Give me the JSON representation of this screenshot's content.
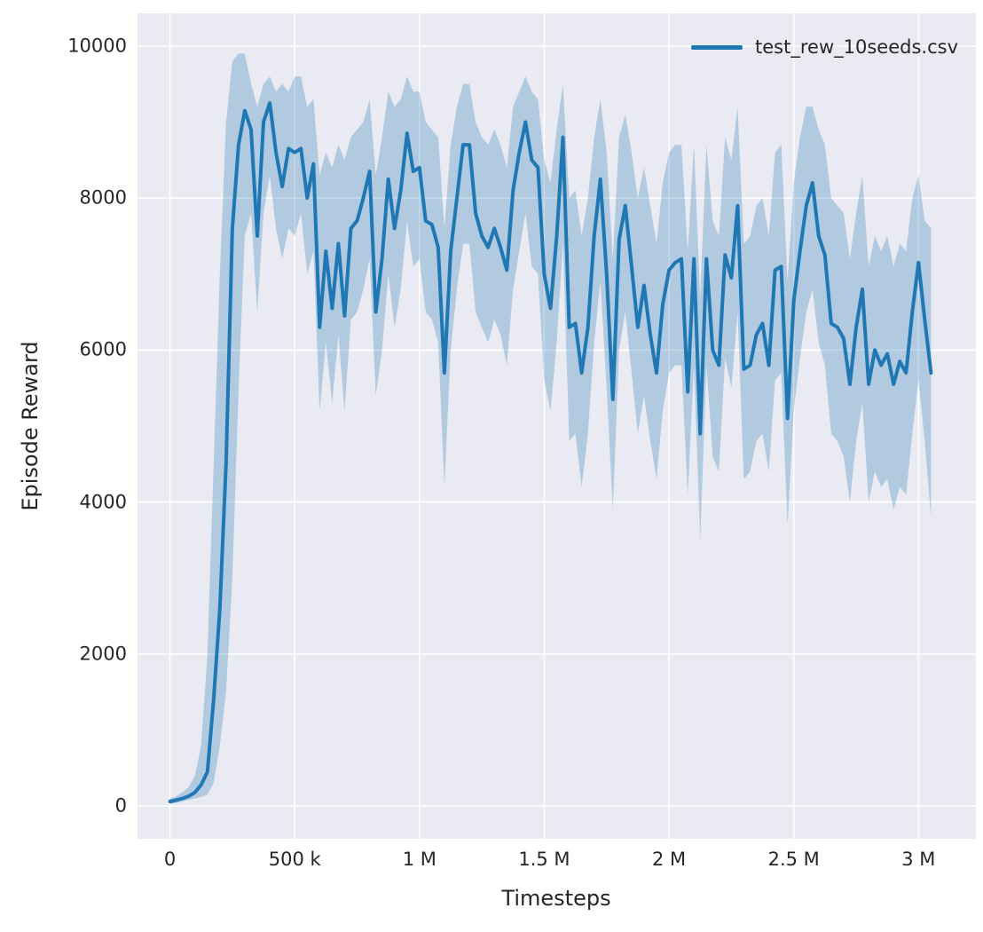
{
  "figure": {
    "background": "#ffffff",
    "plot_background": "#eaeaf2",
    "grid_color": "#ffffff",
    "text_color": "#262626"
  },
  "chart_data": {
    "type": "line",
    "title": "",
    "xlabel": "Timesteps",
    "ylabel": "Episode Reward",
    "x_unit": "thousands of timesteps",
    "xlim": [
      -130,
      3230
    ],
    "ylim": [
      -430,
      10430
    ],
    "grid": true,
    "legend_position": "upper right",
    "x_ticks": [
      {
        "value": 0,
        "label": "0"
      },
      {
        "value": 500,
        "label": "500 k"
      },
      {
        "value": 1000,
        "label": "1 M"
      },
      {
        "value": 1500,
        "label": "1.5 M"
      },
      {
        "value": 2000,
        "label": "2 M"
      },
      {
        "value": 2500,
        "label": "2.5 M"
      },
      {
        "value": 3000,
        "label": "3 M"
      }
    ],
    "y_ticks": [
      {
        "value": 0,
        "label": "0"
      },
      {
        "value": 2000,
        "label": "2000"
      },
      {
        "value": 4000,
        "label": "4000"
      },
      {
        "value": 6000,
        "label": "6000"
      },
      {
        "value": 8000,
        "label": "8000"
      },
      {
        "value": 10000,
        "label": "10000"
      }
    ],
    "series": [
      {
        "name": "test_rew_10seeds.csv",
        "color": "#1f77b4",
        "band_color": "#1f77b4",
        "band_opacity": 0.28,
        "line_width": 4,
        "x": [
          0,
          25,
          50,
          75,
          100,
          125,
          150,
          175,
          200,
          225,
          250,
          275,
          300,
          325,
          350,
          375,
          400,
          425,
          450,
          475,
          500,
          525,
          550,
          575,
          600,
          625,
          650,
          675,
          700,
          725,
          750,
          775,
          800,
          825,
          850,
          875,
          900,
          925,
          950,
          975,
          1000,
          1025,
          1050,
          1075,
          1100,
          1125,
          1150,
          1175,
          1200,
          1225,
          1250,
          1275,
          1300,
          1325,
          1350,
          1375,
          1400,
          1425,
          1450,
          1475,
          1500,
          1525,
          1550,
          1575,
          1600,
          1625,
          1650,
          1675,
          1700,
          1725,
          1750,
          1775,
          1800,
          1825,
          1850,
          1875,
          1900,
          1925,
          1950,
          1975,
          2000,
          2025,
          2050,
          2075,
          2100,
          2125,
          2150,
          2175,
          2200,
          2225,
          2250,
          2275,
          2300,
          2325,
          2350,
          2375,
          2400,
          2425,
          2450,
          2475,
          2500,
          2525,
          2550,
          2575,
          2600,
          2625,
          2650,
          2675,
          2700,
          2725,
          2750,
          2775,
          2800,
          2825,
          2850,
          2875,
          2900,
          2925,
          2950,
          2975,
          3000,
          3025,
          3050
        ],
        "mean": [
          60,
          80,
          100,
          130,
          180,
          280,
          450,
          1400,
          2600,
          4500,
          7600,
          8700,
          9150,
          8900,
          7500,
          9000,
          9250,
          8600,
          8150,
          8650,
          8600,
          8650,
          8000,
          8450,
          6300,
          7300,
          6550,
          7400,
          6450,
          7600,
          7700,
          8000,
          8350,
          6500,
          7200,
          8250,
          7600,
          8100,
          8850,
          8350,
          8400,
          7700,
          7650,
          7350,
          5700,
          7300,
          8000,
          8700,
          8700,
          7800,
          7500,
          7350,
          7600,
          7350,
          7050,
          8100,
          8600,
          9000,
          8500,
          8400,
          7000,
          6550,
          7500,
          8800,
          6300,
          6350,
          5700,
          6300,
          7500,
          8250,
          7000,
          5350,
          7450,
          7900,
          7100,
          6300,
          6850,
          6200,
          5700,
          6600,
          7050,
          7150,
          7200,
          5450,
          7200,
          4900,
          7200,
          6000,
          5800,
          7250,
          6950,
          7900,
          5750,
          5800,
          6200,
          6350,
          5800,
          7050,
          7100,
          5100,
          6650,
          7300,
          7900,
          8200,
          7500,
          7250,
          6350,
          6300,
          6150,
          5550,
          6300,
          6800,
          5550,
          6000,
          5800,
          5950,
          5550,
          5850,
          5700,
          6500,
          7150,
          6400,
          5700
        ],
        "lower": [
          30,
          40,
          60,
          80,
          100,
          120,
          150,
          300,
          800,
          1500,
          3000,
          5500,
          7500,
          7800,
          6500,
          7800,
          8300,
          7600,
          7200,
          7600,
          7500,
          7800,
          7000,
          7300,
          5200,
          6100,
          5300,
          6200,
          5200,
          6400,
          6500,
          6800,
          7200,
          5400,
          6000,
          7000,
          6300,
          6800,
          7700,
          7100,
          7200,
          6500,
          6400,
          6100,
          4200,
          6000,
          6800,
          7400,
          7400,
          6500,
          6300,
          6100,
          6400,
          6200,
          5800,
          6800,
          7300,
          7800,
          7100,
          7000,
          5600,
          5200,
          6100,
          7400,
          4800,
          4900,
          4200,
          4900,
          6100,
          6900,
          5500,
          3900,
          6000,
          6500,
          5700,
          4900,
          5400,
          4800,
          4300,
          5200,
          5700,
          5800,
          5800,
          4100,
          5800,
          3500,
          5800,
          4600,
          4400,
          5900,
          5500,
          6500,
          4300,
          4400,
          4800,
          4900,
          4400,
          5600,
          5700,
          3700,
          5200,
          5900,
          6500,
          6800,
          6100,
          5800,
          4900,
          4800,
          4600,
          4000,
          4800,
          5300,
          4000,
          4400,
          4200,
          4300,
          3900,
          4200,
          4100,
          4900,
          5600,
          4800,
          3800
        ],
        "upper": [
          100,
          130,
          180,
          250,
          400,
          800,
          2000,
          4500,
          7000,
          9000,
          9800,
          9900,
          9900,
          9500,
          9200,
          9500,
          9600,
          9400,
          9500,
          9400,
          9600,
          9600,
          9200,
          9300,
          8300,
          8600,
          8400,
          8700,
          8500,
          8800,
          8900,
          9000,
          9300,
          8300,
          8800,
          9400,
          9200,
          9300,
          9600,
          9400,
          9400,
          9000,
          8900,
          8800,
          7600,
          8700,
          9200,
          9500,
          9500,
          9000,
          8800,
          8700,
          8900,
          8700,
          8400,
          9200,
          9400,
          9600,
          9400,
          9300,
          8500,
          8200,
          8900,
          9500,
          8000,
          8100,
          7500,
          8000,
          8800,
          9300,
          8600,
          7200,
          8800,
          9100,
          8600,
          8000,
          8400,
          7900,
          7400,
          8200,
          8600,
          8700,
          8700,
          7300,
          8700,
          6700,
          8700,
          7700,
          7500,
          8800,
          8500,
          9200,
          7400,
          7500,
          7900,
          8000,
          7500,
          8600,
          8700,
          6900,
          8200,
          8800,
          9200,
          9200,
          8900,
          8700,
          8000,
          7900,
          7800,
          7200,
          7800,
          8300,
          7100,
          7500,
          7300,
          7500,
          7100,
          7400,
          7300,
          8000,
          8300,
          7700,
          7600
        ]
      }
    ]
  }
}
